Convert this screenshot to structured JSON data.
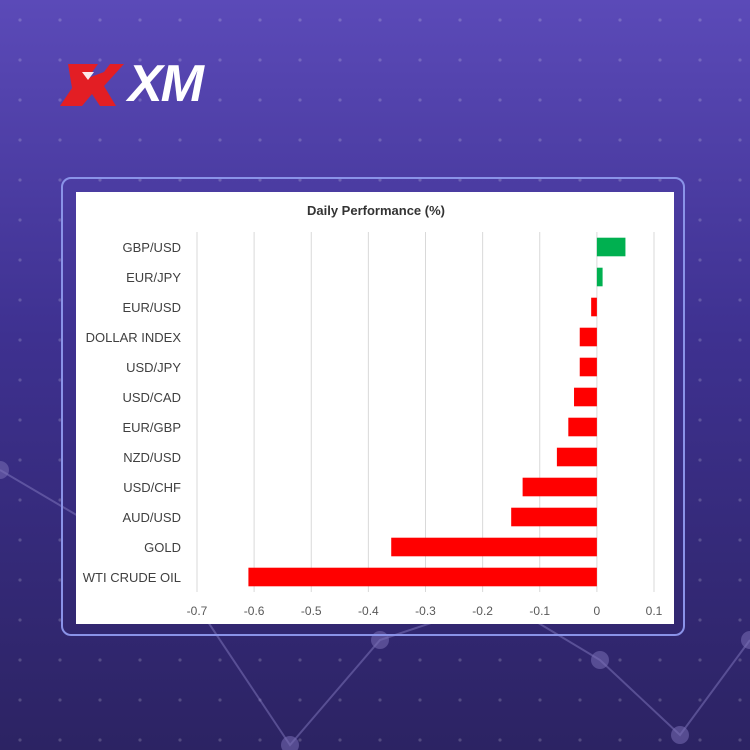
{
  "brand": {
    "logo_text": "XM",
    "colors": {
      "logo_red": "#e31e24",
      "background_top": "#5b4ab8",
      "background_bottom": "#2c2363",
      "frame": "#8a93e8"
    }
  },
  "chart_data": {
    "type": "bar",
    "orientation": "horizontal",
    "title": "Daily Performance (%)",
    "xlabel": "",
    "ylabel": "",
    "categories": [
      "GBP/USD",
      "EUR/JPY",
      "EUR/USD",
      "DOLLAR INDEX",
      "USD/JPY",
      "USD/CAD",
      "EUR/GBP",
      "NZD/USD",
      "USD/CHF",
      "AUD/USD",
      "GOLD",
      "WTI CRUDE OIL"
    ],
    "values": [
      0.05,
      0.01,
      -0.01,
      -0.03,
      -0.03,
      -0.04,
      -0.05,
      -0.07,
      -0.13,
      -0.15,
      -0.36,
      -0.61
    ],
    "xlim": [
      -0.7,
      0.1
    ],
    "x_ticks": [
      "-0.7",
      "-0.6",
      "-0.5",
      "-0.4",
      "-0.3",
      "-0.2",
      "-0.1",
      "0",
      "0.1"
    ],
    "grid": "vertical",
    "colors": {
      "positive": "#00b050",
      "negative": "#ff0000"
    }
  }
}
